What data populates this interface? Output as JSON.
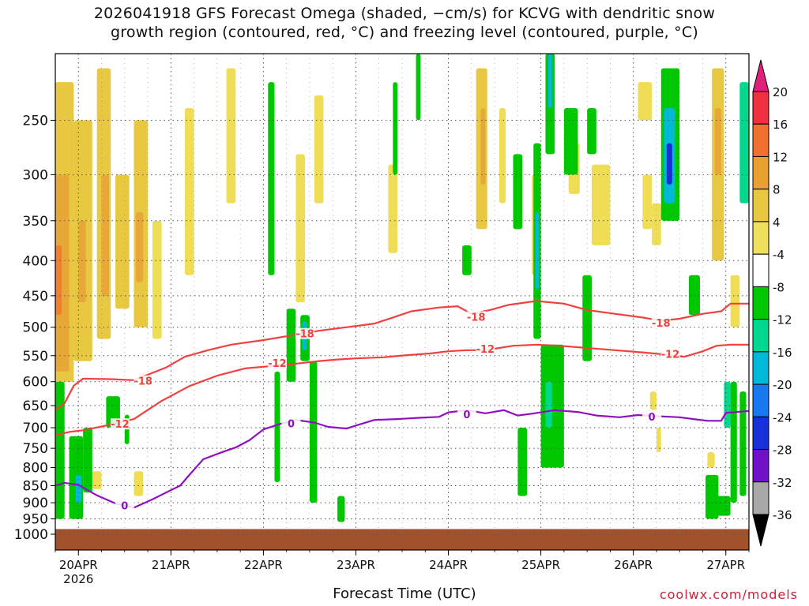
{
  "title": {
    "line1": "2026041918 GFS Forecast Omega (shaded, −cm/s) for KCVG with dendritic snow",
    "line2": "growth region (contoured, red, °C) and freezing level (contoured, purple, °C)"
  },
  "credit": "coolwx.com/models",
  "colors": {
    "dgz": "#f04040",
    "freezing": "#9010c0",
    "ground": "#a0522d",
    "grid": "#555555"
  },
  "chart_data": {
    "type": "heatmap",
    "title": "2026041918 GFS Forecast Omega (shaded, −cm/s) for KCVG with dendritic snow growth region (contoured, red, °C) and freezing level (contoured, purple, °C)",
    "xlabel": "Forecast Time (UTC)",
    "ylabel": "",
    "x_ticks": [
      {
        "label": "20APR",
        "day": 20
      },
      {
        "label": "21APR",
        "day": 21
      },
      {
        "label": "22APR",
        "day": 22
      },
      {
        "label": "23APR",
        "day": 23
      },
      {
        "label": "24APR",
        "day": 24
      },
      {
        "label": "25APR",
        "day": 25
      },
      {
        "label": "26APR",
        "day": 26
      },
      {
        "label": "27APR",
        "day": 27
      }
    ],
    "x_year_label": "2026",
    "xlim_day": [
      19.75,
      27.25
    ],
    "y_ticks": [
      250,
      300,
      350,
      400,
      450,
      500,
      550,
      600,
      650,
      700,
      750,
      800,
      850,
      900,
      950,
      1000
    ],
    "ylim_hpa": [
      200,
      1000
    ],
    "ground_top_hpa": 983,
    "colorbar": {
      "labels": [
        "20",
        "16",
        "12",
        "8",
        "4",
        "-4",
        "-8",
        "-12",
        "-16",
        "-20",
        "-24",
        "-28",
        "-32",
        "-36"
      ],
      "colors": [
        "#f03040",
        "#f07030",
        "#e8a030",
        "#e8c840",
        "#f0e060",
        "#ffffff",
        "#00c800",
        "#00d890",
        "#00b8d8",
        "#1878f0",
        "#1830d8",
        "#7010c8",
        "#9800c8",
        "#a8a8a8"
      ]
    },
    "series": [
      {
        "name": "-18",
        "color": "#f04040",
        "label_points": [
          [
            20.7,
            600
          ],
          [
            22.45,
            512
          ],
          [
            24.3,
            484
          ],
          [
            26.3,
            494
          ]
        ],
        "points": [
          [
            19.75,
            660
          ],
          [
            19.85,
            645
          ],
          [
            19.95,
            608
          ],
          [
            20.05,
            594
          ],
          [
            20.35,
            595
          ],
          [
            20.6,
            597
          ],
          [
            20.95,
            572
          ],
          [
            21.15,
            552
          ],
          [
            21.4,
            540
          ],
          [
            21.65,
            530
          ],
          [
            22.0,
            522
          ],
          [
            22.3,
            514
          ],
          [
            22.6,
            506
          ],
          [
            22.9,
            500
          ],
          [
            23.2,
            494
          ],
          [
            23.4,
            484
          ],
          [
            23.6,
            474
          ],
          [
            23.9,
            468
          ],
          [
            24.1,
            466
          ],
          [
            24.25,
            478
          ],
          [
            24.45,
            472
          ],
          [
            24.65,
            464
          ],
          [
            24.95,
            458
          ],
          [
            25.25,
            462
          ],
          [
            25.5,
            472
          ],
          [
            25.8,
            478
          ],
          [
            26.1,
            484
          ],
          [
            26.3,
            489
          ],
          [
            26.5,
            486
          ],
          [
            26.75,
            478
          ],
          [
            26.95,
            474
          ],
          [
            27.05,
            462
          ],
          [
            27.25,
            462
          ]
        ]
      },
      {
        "name": "-12",
        "color": "#f04040",
        "label_points": [
          [
            20.45,
            693
          ],
          [
            22.15,
            565
          ],
          [
            24.4,
            539
          ],
          [
            26.4,
            548
          ]
        ],
        "points": [
          [
            19.75,
            718
          ],
          [
            19.9,
            710
          ],
          [
            20.05,
            706
          ],
          [
            20.3,
            695
          ],
          [
            20.6,
            680
          ],
          [
            20.9,
            640
          ],
          [
            21.2,
            609
          ],
          [
            21.5,
            588
          ],
          [
            21.8,
            574
          ],
          [
            22.05,
            570
          ],
          [
            22.3,
            566
          ],
          [
            22.6,
            560
          ],
          [
            22.8,
            557
          ],
          [
            23.0,
            555
          ],
          [
            23.3,
            553
          ],
          [
            23.55,
            549
          ],
          [
            23.8,
            546
          ],
          [
            24.0,
            542
          ],
          [
            24.2,
            540
          ],
          [
            24.4,
            540
          ],
          [
            24.7,
            532
          ],
          [
            24.95,
            530
          ],
          [
            25.2,
            532
          ],
          [
            25.5,
            536
          ],
          [
            25.8,
            540
          ],
          [
            26.1,
            544
          ],
          [
            26.35,
            548
          ],
          [
            26.55,
            552
          ],
          [
            26.75,
            542
          ],
          [
            26.9,
            532
          ],
          [
            27.05,
            530
          ],
          [
            27.25,
            530
          ]
        ]
      },
      {
        "name": "0",
        "color": "#9010c0",
        "label_points": [
          [
            20.5,
            911
          ],
          [
            22.3,
            692
          ],
          [
            24.2,
            671
          ],
          [
            26.2,
            676
          ]
        ],
        "points": [
          [
            19.75,
            850
          ],
          [
            19.85,
            842
          ],
          [
            20.0,
            848
          ],
          [
            20.2,
            878
          ],
          [
            20.4,
            902
          ],
          [
            20.6,
            915
          ],
          [
            20.8,
            890
          ],
          [
            21.0,
            863
          ],
          [
            21.1,
            850
          ],
          [
            21.2,
            820
          ],
          [
            21.35,
            778
          ],
          [
            21.55,
            760
          ],
          [
            21.7,
            748
          ],
          [
            21.85,
            730
          ],
          [
            22.0,
            704
          ],
          [
            22.2,
            690
          ],
          [
            22.35,
            682
          ],
          [
            22.55,
            688
          ],
          [
            22.7,
            698
          ],
          [
            22.9,
            702
          ],
          [
            23.0,
            695
          ],
          [
            23.2,
            682
          ],
          [
            23.45,
            680
          ],
          [
            23.7,
            677
          ],
          [
            23.9,
            675
          ],
          [
            24.0,
            665
          ],
          [
            24.2,
            660
          ],
          [
            24.4,
            667
          ],
          [
            24.6,
            660
          ],
          [
            24.75,
            672
          ],
          [
            24.9,
            668
          ],
          [
            25.15,
            660
          ],
          [
            25.4,
            664
          ],
          [
            25.6,
            672
          ],
          [
            25.85,
            676
          ],
          [
            26.05,
            671
          ],
          [
            26.3,
            674
          ],
          [
            26.5,
            676
          ],
          [
            26.65,
            680
          ],
          [
            26.8,
            684
          ],
          [
            26.95,
            684
          ],
          [
            27.0,
            666
          ],
          [
            27.25,
            662
          ]
        ]
      }
    ],
    "regions": [
      {
        "day0": 19.75,
        "day1": 19.95,
        "p0": 220,
        "p1": 600,
        "v": 6
      },
      {
        "day0": 19.75,
        "day1": 19.9,
        "p0": 300,
        "p1": 580,
        "v": 9
      },
      {
        "day0": 19.75,
        "day1": 19.82,
        "p0": 380,
        "p1": 480,
        "v": 13
      },
      {
        "day0": 19.95,
        "day1": 20.15,
        "p0": 250,
        "p1": 560,
        "v": 7
      },
      {
        "day0": 20.0,
        "day1": 20.08,
        "p0": 350,
        "p1": 460,
        "v": 10
      },
      {
        "day0": 20.2,
        "day1": 20.35,
        "p0": 210,
        "p1": 520,
        "v": 6
      },
      {
        "day0": 20.25,
        "day1": 20.33,
        "p0": 300,
        "p1": 450,
        "v": 10
      },
      {
        "day0": 20.4,
        "day1": 20.55,
        "p0": 300,
        "p1": 470,
        "v": 7
      },
      {
        "day0": 20.6,
        "day1": 20.75,
        "p0": 250,
        "p1": 500,
        "v": 6
      },
      {
        "day0": 20.62,
        "day1": 20.7,
        "p0": 340,
        "p1": 430,
        "v": 9
      },
      {
        "day0": 20.8,
        "day1": 20.9,
        "p0": 350,
        "p1": 520,
        "v": 5
      },
      {
        "day0": 21.15,
        "day1": 21.25,
        "p0": 240,
        "p1": 420,
        "v": 5
      },
      {
        "day0": 21.6,
        "day1": 21.7,
        "p0": 210,
        "p1": 330,
        "v": 5
      },
      {
        "day0": 22.35,
        "day1": 22.45,
        "p0": 280,
        "p1": 460,
        "v": 5
      },
      {
        "day0": 22.55,
        "day1": 22.65,
        "p0": 230,
        "p1": 330,
        "v": 5
      },
      {
        "day0": 23.35,
        "day1": 23.45,
        "p0": 290,
        "p1": 390,
        "v": 5
      },
      {
        "day0": 24.3,
        "day1": 24.42,
        "p0": 210,
        "p1": 360,
        "v": 6
      },
      {
        "day0": 24.35,
        "day1": 24.4,
        "p0": 240,
        "p1": 310,
        "v": 10
      },
      {
        "day0": 24.55,
        "day1": 24.62,
        "p0": 240,
        "p1": 330,
        "v": 5
      },
      {
        "day0": 24.9,
        "day1": 25.0,
        "p0": 300,
        "p1": 420,
        "v": 5
      },
      {
        "day0": 25.3,
        "day1": 25.42,
        "p0": 270,
        "p1": 320,
        "v": 5
      },
      {
        "day0": 25.55,
        "day1": 25.75,
        "p0": 290,
        "p1": 380,
        "v": 5
      },
      {
        "day0": 26.05,
        "day1": 26.2,
        "p0": 220,
        "p1": 250,
        "v": 5
      },
      {
        "day0": 26.1,
        "day1": 26.2,
        "p0": 300,
        "p1": 360,
        "v": 5
      },
      {
        "day0": 26.2,
        "day1": 26.3,
        "p0": 330,
        "p1": 380,
        "v": 5
      },
      {
        "day0": 26.4,
        "day1": 26.48,
        "p0": 210,
        "p1": 240,
        "v": 5
      },
      {
        "day0": 26.85,
        "day1": 26.98,
        "p0": 210,
        "p1": 400,
        "v": 6
      },
      {
        "day0": 26.88,
        "day1": 26.95,
        "p0": 240,
        "p1": 300,
        "v": 10
      },
      {
        "day0": 27.05,
        "day1": 27.15,
        "p0": 420,
        "p1": 500,
        "v": 5
      },
      {
        "day0": 20.6,
        "day1": 20.7,
        "p0": 810,
        "p1": 880,
        "v": 5
      },
      {
        "day0": 20.15,
        "day1": 20.25,
        "p0": 810,
        "p1": 860,
        "v": 5
      },
      {
        "day0": 26.18,
        "day1": 26.25,
        "p0": 620,
        "p1": 660,
        "v": 5
      },
      {
        "day0": 26.8,
        "day1": 26.88,
        "p0": 760,
        "p1": 800,
        "v": 5
      },
      {
        "day0": 26.25,
        "day1": 26.3,
        "p0": 700,
        "p1": 760,
        "v": 5
      },
      {
        "day0": 19.75,
        "day1": 19.85,
        "p0": 600,
        "p1": 950,
        "v": -6
      },
      {
        "day0": 19.9,
        "day1": 20.05,
        "p0": 720,
        "p1": 950,
        "v": -6
      },
      {
        "day0": 19.97,
        "day1": 20.03,
        "p0": 820,
        "p1": 900,
        "v": -14
      },
      {
        "day0": 20.05,
        "day1": 20.15,
        "p0": 700,
        "p1": 870,
        "v": -6
      },
      {
        "day0": 20.3,
        "day1": 20.45,
        "p0": 630,
        "p1": 700,
        "v": -6
      },
      {
        "day0": 20.5,
        "day1": 20.55,
        "p0": 670,
        "p1": 740,
        "v": -6
      },
      {
        "day0": 22.05,
        "day1": 22.12,
        "p0": 220,
        "p1": 420,
        "v": -6
      },
      {
        "day0": 22.12,
        "day1": 22.18,
        "p0": 580,
        "p1": 840,
        "v": -6
      },
      {
        "day0": 22.25,
        "day1": 22.35,
        "p0": 470,
        "p1": 600,
        "v": -6
      },
      {
        "day0": 22.4,
        "day1": 22.5,
        "p0": 480,
        "p1": 560,
        "v": -6
      },
      {
        "day0": 22.42,
        "day1": 22.47,
        "p0": 490,
        "p1": 540,
        "v": -14
      },
      {
        "day0": 22.5,
        "day1": 22.58,
        "p0": 560,
        "p1": 900,
        "v": -6
      },
      {
        "day0": 22.8,
        "day1": 22.88,
        "p0": 880,
        "p1": 960,
        "v": -6
      },
      {
        "day0": 23.4,
        "day1": 23.45,
        "p0": 220,
        "p1": 300,
        "v": -6
      },
      {
        "day0": 23.65,
        "day1": 23.7,
        "p0": 200,
        "p1": 250,
        "v": -6
      },
      {
        "day0": 24.15,
        "day1": 24.25,
        "p0": 380,
        "p1": 420,
        "v": -6
      },
      {
        "day0": 24.7,
        "day1": 24.8,
        "p0": 280,
        "p1": 360,
        "v": -6
      },
      {
        "day0": 24.75,
        "day1": 24.85,
        "p0": 700,
        "p1": 880,
        "v": -6
      },
      {
        "day0": 24.92,
        "day1": 25.0,
        "p0": 270,
        "p1": 520,
        "v": -6
      },
      {
        "day0": 24.94,
        "day1": 24.98,
        "p0": 340,
        "p1": 440,
        "v": -14
      },
      {
        "day0": 25.05,
        "day1": 25.15,
        "p0": 200,
        "p1": 280,
        "v": -6
      },
      {
        "day0": 25.08,
        "day1": 25.12,
        "p0": 200,
        "p1": 240,
        "v": -14
      },
      {
        "day0": 25.0,
        "day1": 25.25,
        "p0": 530,
        "p1": 800,
        "v": -6
      },
      {
        "day0": 25.05,
        "day1": 25.12,
        "p0": 600,
        "p1": 700,
        "v": -10
      },
      {
        "day0": 25.25,
        "day1": 25.4,
        "p0": 240,
        "p1": 300,
        "v": -6
      },
      {
        "day0": 25.5,
        "day1": 25.6,
        "p0": 240,
        "p1": 280,
        "v": -6
      },
      {
        "day0": 25.45,
        "day1": 25.55,
        "p0": 420,
        "p1": 560,
        "v": -6
      },
      {
        "day0": 26.3,
        "day1": 26.5,
        "p0": 210,
        "p1": 350,
        "v": -6
      },
      {
        "day0": 26.33,
        "day1": 26.45,
        "p0": 240,
        "p1": 330,
        "v": -12
      },
      {
        "day0": 26.36,
        "day1": 26.42,
        "p0": 270,
        "p1": 310,
        "v": -20
      },
      {
        "day0": 26.6,
        "day1": 26.72,
        "p0": 420,
        "p1": 480,
        "v": -6
      },
      {
        "day0": 26.78,
        "day1": 26.92,
        "p0": 820,
        "p1": 950,
        "v": -6
      },
      {
        "day0": 26.85,
        "day1": 27.05,
        "p0": 880,
        "p1": 940,
        "v": -6
      },
      {
        "day0": 27.05,
        "day1": 27.12,
        "p0": 600,
        "p1": 900,
        "v": -6
      },
      {
        "day0": 26.98,
        "day1": 27.05,
        "p0": 600,
        "p1": 700,
        "v": -11
      },
      {
        "day0": 27.15,
        "day1": 27.25,
        "p0": 220,
        "p1": 330,
        "v": -10
      },
      {
        "day0": 27.15,
        "day1": 27.22,
        "p0": 620,
        "p1": 880,
        "v": -6
      }
    ]
  }
}
